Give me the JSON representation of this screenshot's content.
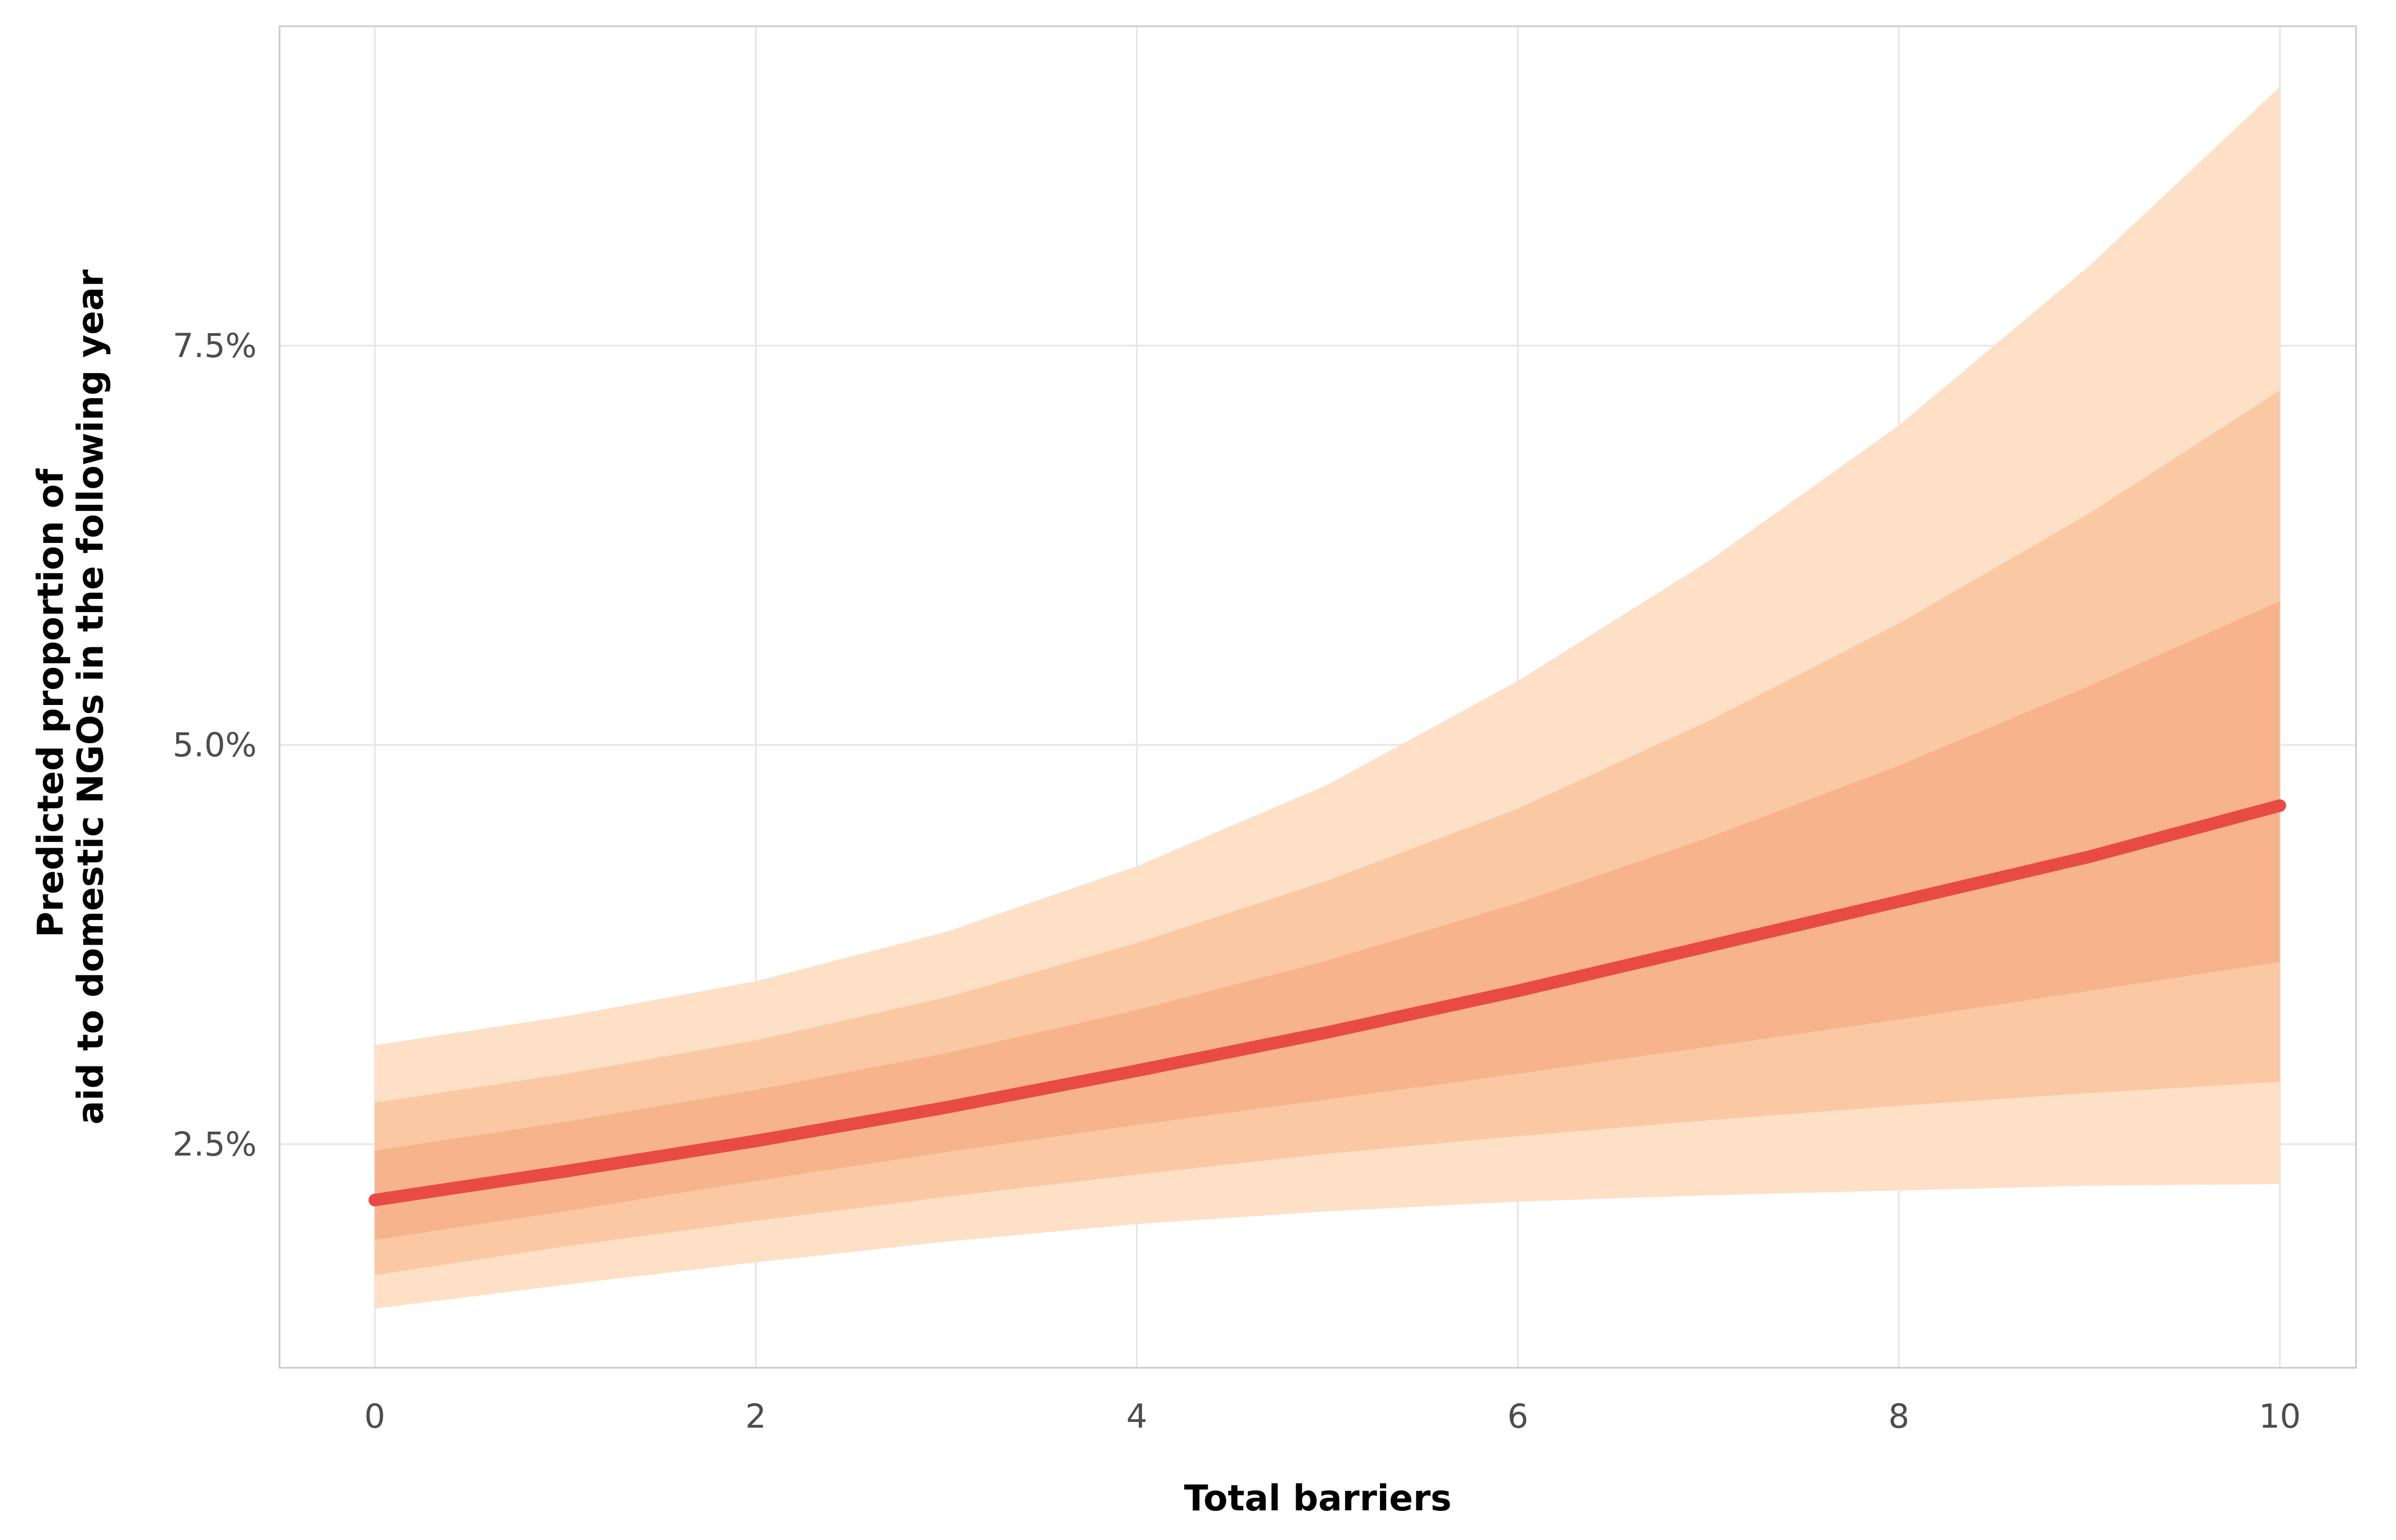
{
  "chart_data": {
    "type": "area",
    "title": "",
    "xlabel": "Total barriers",
    "ylabel_lines": [
      "Predicted proportion of",
      "aid to domestic NGOs in the following year"
    ],
    "x": [
      0,
      1,
      2,
      3,
      4,
      5,
      6,
      7,
      8,
      9,
      10
    ],
    "xlim": [
      -0.5,
      10.4
    ],
    "ylim": [
      1.1,
      9.5
    ],
    "x_ticks": [
      0,
      2,
      4,
      6,
      8,
      10
    ],
    "x_tick_labels": [
      "0",
      "2",
      "4",
      "6",
      "8",
      "10"
    ],
    "y_ticks": [
      2.5,
      5.0,
      7.5
    ],
    "y_tick_labels": [
      "2.5%",
      "5.0%",
      "7.5%"
    ],
    "grid": true,
    "legend": "none",
    "line": {
      "name": "",
      "color": "#e84b43",
      "values": [
        2.15,
        2.33,
        2.52,
        2.73,
        2.96,
        3.2,
        3.46,
        3.74,
        4.02,
        4.3,
        4.62
      ]
    },
    "bands": [
      {
        "level": "outer",
        "color": "#fde0c6",
        "lower": [
          1.47,
          1.62,
          1.76,
          1.89,
          2.0,
          2.08,
          2.14,
          2.18,
          2.21,
          2.24,
          2.25
        ],
        "upper": [
          3.12,
          3.3,
          3.52,
          3.83,
          4.24,
          4.75,
          5.4,
          6.15,
          7.0,
          8.0,
          9.12
        ]
      },
      {
        "level": "middle",
        "color": "#fac9a4",
        "lower": [
          1.68,
          1.86,
          2.02,
          2.17,
          2.31,
          2.44,
          2.55,
          2.65,
          2.74,
          2.82,
          2.89
        ],
        "upper": [
          2.76,
          2.94,
          3.15,
          3.42,
          3.76,
          4.15,
          4.6,
          5.15,
          5.76,
          6.45,
          7.22
        ]
      },
      {
        "level": "inner",
        "color": "#f7b48c",
        "lower": [
          1.9,
          2.08,
          2.27,
          2.45,
          2.62,
          2.78,
          2.94,
          3.11,
          3.28,
          3.46,
          3.64
        ],
        "upper": [
          2.46,
          2.64,
          2.84,
          3.07,
          3.34,
          3.65,
          4.01,
          4.42,
          4.87,
          5.37,
          5.9
        ]
      }
    ]
  }
}
